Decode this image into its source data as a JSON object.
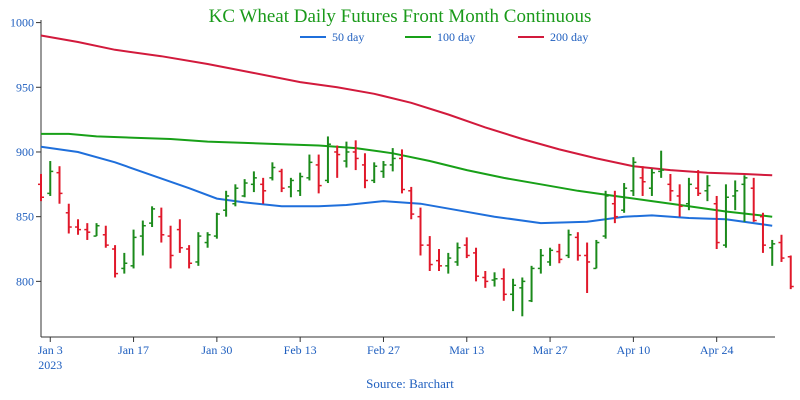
{
  "chart_data": {
    "type": "ohlc",
    "title": "KC Wheat Daily Futures Front Month Continuous",
    "source": "Source: Barchart",
    "ylim": [
      757,
      1002
    ],
    "yticks": [
      800,
      850,
      900,
      950,
      1000
    ],
    "xlim": [
      0,
      79.3
    ],
    "xticks": [
      {
        "x": 1,
        "label": "Jan 3",
        "sublabel": "2023"
      },
      {
        "x": 10,
        "label": "Jan 17"
      },
      {
        "x": 19,
        "label": "Jan 30"
      },
      {
        "x": 28,
        "label": "Feb 13"
      },
      {
        "x": 37,
        "label": "Feb 27"
      },
      {
        "x": 46,
        "label": "Mar 13"
      },
      {
        "x": 55,
        "label": "Mar 27"
      },
      {
        "x": 64,
        "label": "Apr 10"
      },
      {
        "x": 73,
        "label": "Apr 24"
      }
    ],
    "colors": {
      "up": "#1b8a1b",
      "down": "#e0182a",
      "ma50": "#1f6fdb",
      "ma100": "#18a018",
      "ma200": "#d21a3c"
    },
    "ohlc": [
      [
        875,
        883,
        862,
        865
      ],
      [
        868,
        893,
        866,
        885
      ],
      [
        884,
        889,
        860,
        868
      ],
      [
        853,
        860,
        837,
        842
      ],
      [
        842,
        848,
        836,
        840
      ],
      [
        840,
        845,
        832,
        838
      ],
      [
        835,
        845,
        835,
        843
      ],
      [
        836,
        843,
        826,
        828
      ],
      [
        825,
        828,
        803,
        806
      ],
      [
        810,
        822,
        806,
        814
      ],
      [
        812,
        840,
        810,
        834
      ],
      [
        835,
        847,
        820,
        843
      ],
      [
        845,
        858,
        842,
        856
      ],
      [
        850,
        857,
        830,
        836
      ],
      [
        835,
        843,
        810,
        820
      ],
      [
        840,
        848,
        822,
        826
      ],
      [
        825,
        828,
        810,
        814
      ],
      [
        815,
        838,
        812,
        835
      ],
      [
        830,
        838,
        826,
        836
      ],
      [
        835,
        853,
        833,
        852
      ],
      [
        855,
        870,
        850,
        866
      ],
      [
        860,
        875,
        858,
        872
      ],
      [
        866,
        879,
        865,
        876
      ],
      [
        875,
        885,
        869,
        880
      ],
      [
        875,
        880,
        860,
        870
      ],
      [
        880,
        892,
        878,
        888
      ],
      [
        885,
        887,
        869,
        872
      ],
      [
        873,
        880,
        865,
        878
      ],
      [
        870,
        884,
        866,
        881
      ],
      [
        880,
        898,
        878,
        892
      ],
      [
        890,
        898,
        868,
        874
      ],
      [
        878,
        912,
        876,
        906
      ],
      [
        900,
        905,
        880,
        898
      ],
      [
        893,
        908,
        888,
        900
      ],
      [
        900,
        909,
        886,
        895
      ],
      [
        890,
        899,
        872,
        878
      ],
      [
        878,
        892,
        876,
        889
      ],
      [
        885,
        893,
        880,
        890
      ],
      [
        890,
        903,
        885,
        895
      ],
      [
        895,
        902,
        868,
        871
      ],
      [
        870,
        873,
        848,
        852
      ],
      [
        850,
        857,
        820,
        828
      ],
      [
        828,
        835,
        808,
        813
      ],
      [
        816,
        825,
        808,
        812
      ],
      [
        812,
        822,
        806,
        818
      ],
      [
        815,
        830,
        812,
        826
      ],
      [
        828,
        834,
        818,
        820
      ],
      [
        822,
        826,
        800,
        804
      ],
      [
        803,
        808,
        795,
        800
      ],
      [
        801,
        807,
        796,
        802
      ],
      [
        802,
        810,
        785,
        790
      ],
      [
        790,
        802,
        777,
        797
      ],
      [
        795,
        803,
        773,
        800
      ],
      [
        785,
        812,
        784,
        810
      ],
      [
        810,
        825,
        806,
        820
      ],
      [
        815,
        826,
        812,
        824
      ],
      [
        823,
        829,
        814,
        817
      ],
      [
        820,
        840,
        818,
        836
      ],
      [
        834,
        838,
        816,
        820
      ],
      [
        820,
        830,
        791,
        815
      ],
      [
        810,
        832,
        810,
        830
      ],
      [
        835,
        870,
        833,
        866
      ],
      [
        860,
        870,
        845,
        850
      ],
      [
        855,
        876,
        853,
        872
      ],
      [
        870,
        896,
        866,
        892
      ],
      [
        880,
        889,
        866,
        877
      ],
      [
        872,
        887,
        866,
        884
      ],
      [
        885,
        901,
        880,
        886
      ],
      [
        875,
        883,
        862,
        870
      ],
      [
        866,
        875,
        850,
        858
      ],
      [
        860,
        880,
        855,
        875
      ],
      [
        872,
        886,
        866,
        868
      ],
      [
        870,
        882,
        862,
        874
      ],
      [
        860,
        866,
        825,
        830
      ],
      [
        828,
        875,
        826,
        865
      ],
      [
        866,
        878,
        855,
        870
      ],
      [
        875,
        882,
        846,
        880
      ],
      [
        872,
        880,
        846,
        847
      ],
      [
        850,
        853,
        822,
        828
      ],
      [
        826,
        832,
        812,
        829
      ],
      [
        830,
        836,
        815,
        818
      ],
      [
        819,
        820,
        794,
        796
      ]
    ],
    "series": [
      {
        "name": "50 day",
        "color": "#1f6fdb",
        "points": [
          [
            0,
            904
          ],
          [
            4,
            900
          ],
          [
            8,
            892
          ],
          [
            12,
            882
          ],
          [
            16,
            872
          ],
          [
            19,
            864
          ],
          [
            22,
            861
          ],
          [
            26,
            858
          ],
          [
            30,
            858
          ],
          [
            33,
            859
          ],
          [
            37,
            862
          ],
          [
            41,
            860
          ],
          [
            45,
            855
          ],
          [
            49,
            850
          ],
          [
            54,
            845
          ],
          [
            59,
            846
          ],
          [
            63,
            850
          ],
          [
            66,
            851
          ],
          [
            70,
            849
          ],
          [
            74,
            848
          ],
          [
            79,
            843
          ]
        ]
      },
      {
        "name": "100 day",
        "color": "#18a018",
        "points": [
          [
            0,
            914
          ],
          [
            3,
            914
          ],
          [
            6,
            912
          ],
          [
            10,
            911
          ],
          [
            14,
            910
          ],
          [
            18,
            908
          ],
          [
            22,
            907
          ],
          [
            26,
            906
          ],
          [
            30,
            905
          ],
          [
            34,
            903
          ],
          [
            38,
            899
          ],
          [
            42,
            893
          ],
          [
            46,
            886
          ],
          [
            50,
            880
          ],
          [
            54,
            875
          ],
          [
            58,
            870
          ],
          [
            62,
            866
          ],
          [
            66,
            862
          ],
          [
            70,
            858
          ],
          [
            74,
            854
          ],
          [
            79,
            850
          ]
        ]
      },
      {
        "name": "200 day",
        "color": "#d21a3c",
        "points": [
          [
            0,
            990
          ],
          [
            4,
            985
          ],
          [
            8,
            979
          ],
          [
            13,
            974
          ],
          [
            18,
            968
          ],
          [
            23,
            961
          ],
          [
            28,
            954
          ],
          [
            32,
            950
          ],
          [
            36,
            945
          ],
          [
            40,
            938
          ],
          [
            44,
            929
          ],
          [
            48,
            919
          ],
          [
            52,
            910
          ],
          [
            56,
            902
          ],
          [
            60,
            895
          ],
          [
            64,
            889
          ],
          [
            68,
            886
          ],
          [
            72,
            884
          ],
          [
            76,
            883
          ],
          [
            79,
            882
          ]
        ]
      }
    ]
  }
}
